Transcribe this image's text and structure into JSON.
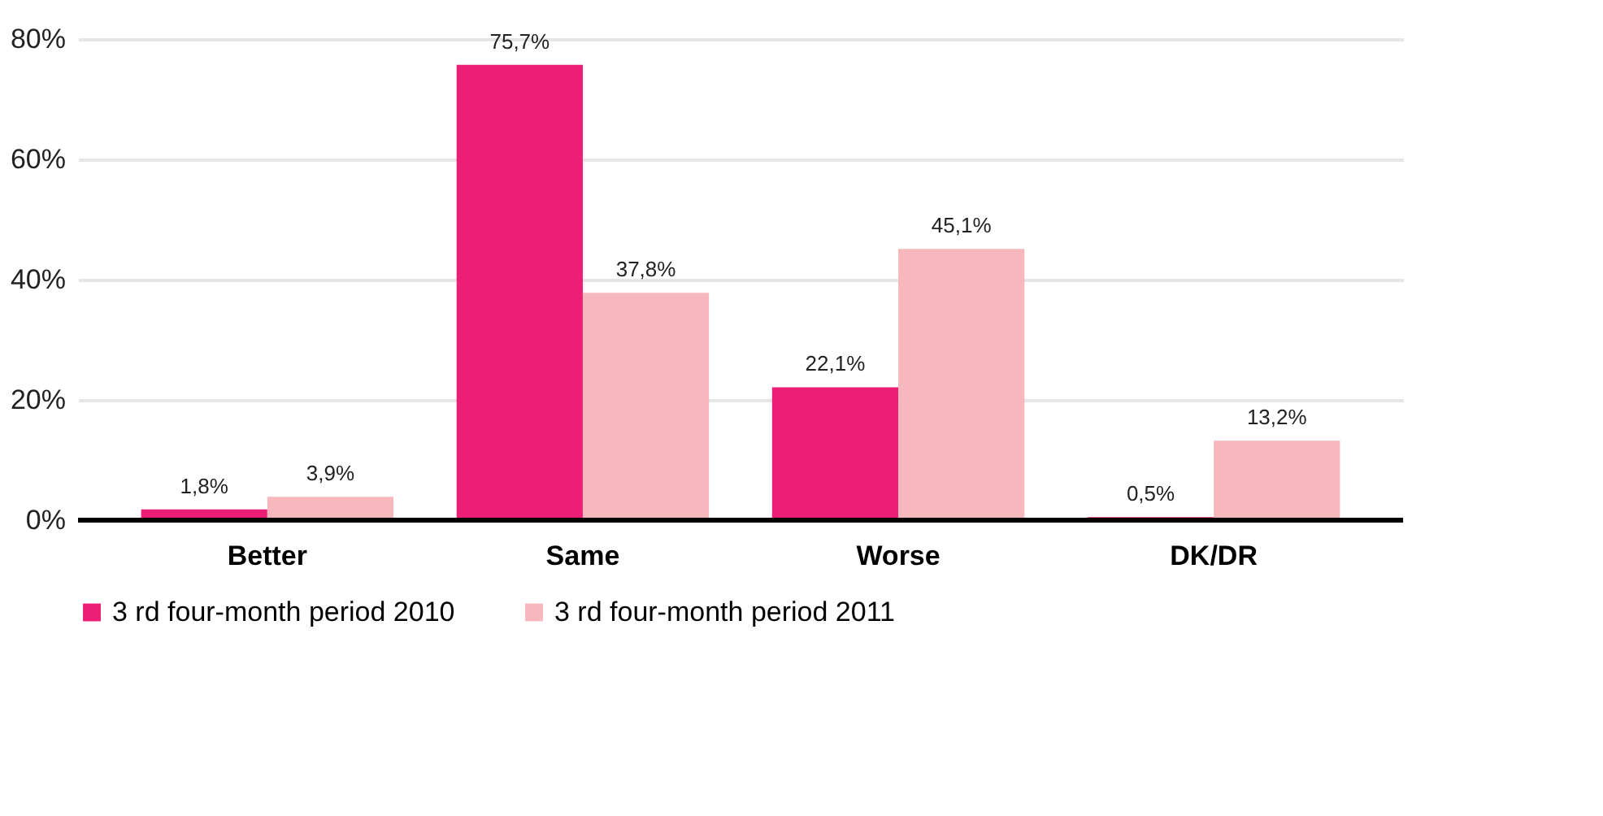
{
  "chart_data": {
    "type": "bar",
    "categories": [
      "Better",
      "Same",
      "Worse",
      "DK/DR"
    ],
    "series": [
      {
        "name": "3 rd four-month period 2010",
        "color": "#ed1e76",
        "values": [
          1.8,
          75.7,
          22.1,
          0.5
        ],
        "value_labels": [
          "1,8%",
          "75,7%",
          "22,1%",
          "0,5%"
        ]
      },
      {
        "name": "3 rd four-month period 2011",
        "color": "#f7b8bd",
        "values": [
          3.9,
          37.8,
          45.1,
          13.2
        ],
        "value_labels": [
          "3,9%",
          "37,8%",
          "45,1%",
          "13,2%"
        ]
      }
    ],
    "ylim": [
      0,
      80
    ],
    "yticks": [
      {
        "value": 0,
        "label": "0%"
      },
      {
        "value": 20,
        "label": "20%"
      },
      {
        "value": 40,
        "label": "40%"
      },
      {
        "value": 60,
        "label": "60%"
      },
      {
        "value": 80,
        "label": "80%"
      }
    ],
    "grid": "y",
    "legend": "bottom"
  }
}
